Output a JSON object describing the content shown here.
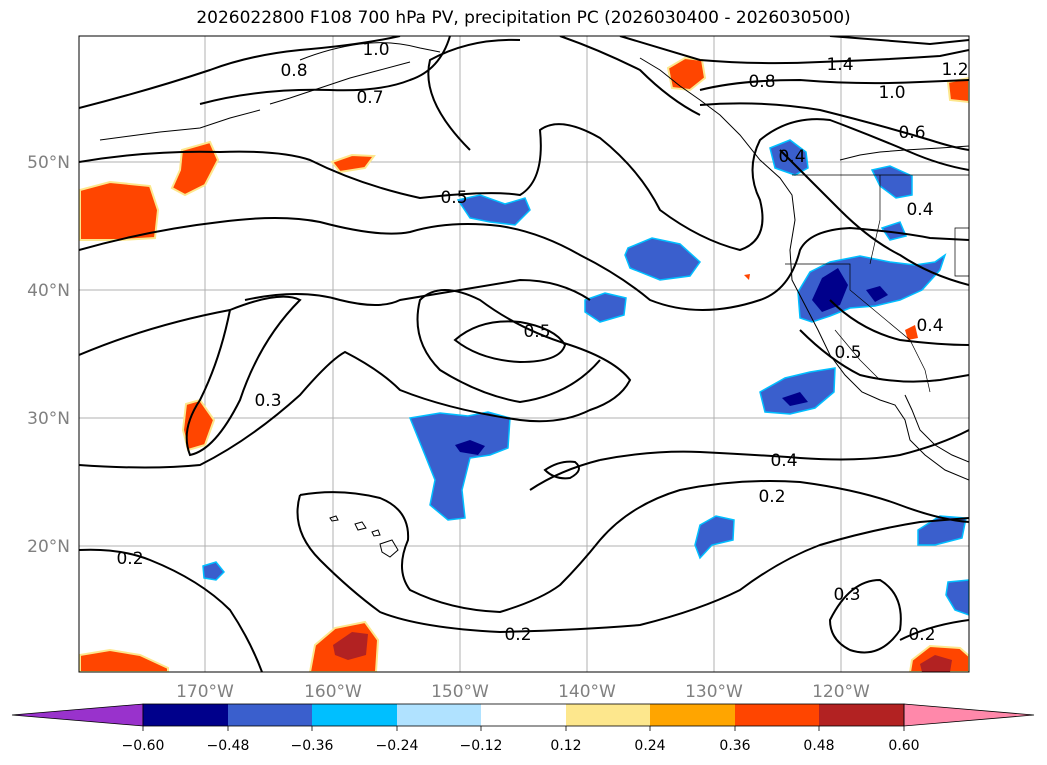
{
  "title": "2026022800 F108 700 hPa PV, precipitation PC (2026030400 - 2026030500)",
  "map": {
    "lon_ticks": [
      "170°W",
      "160°W",
      "150°W",
      "140°W",
      "130°W",
      "120°W"
    ],
    "lat_ticks": [
      "50°N",
      "40°N",
      "30°N",
      "20°N"
    ],
    "contour_labels": [
      "1.0",
      "0.8",
      "0.7",
      "1.4",
      "0.8",
      "1.2",
      "1.0",
      "0.6",
      "0.5",
      "0.4",
      "0.4",
      "0.5",
      "0.4",
      "0.5",
      "0.3",
      "0.4",
      "0.2",
      "0.2",
      "0.3",
      "0.2",
      "0.2"
    ]
  },
  "colorbar": {
    "colors": [
      "#9932cc",
      "#00008b",
      "#3a5fcd",
      "#00bfff",
      "#b0e2ff",
      "#ffffff",
      "#fde78d",
      "#ffa500",
      "#ff4500",
      "#b22222",
      "#ff88aa"
    ],
    "ticks": [
      "−0.60",
      "−0.48",
      "−0.36",
      "−0.24",
      "−0.12",
      "0.12",
      "0.24",
      "0.36",
      "0.48",
      "0.60"
    ]
  }
}
